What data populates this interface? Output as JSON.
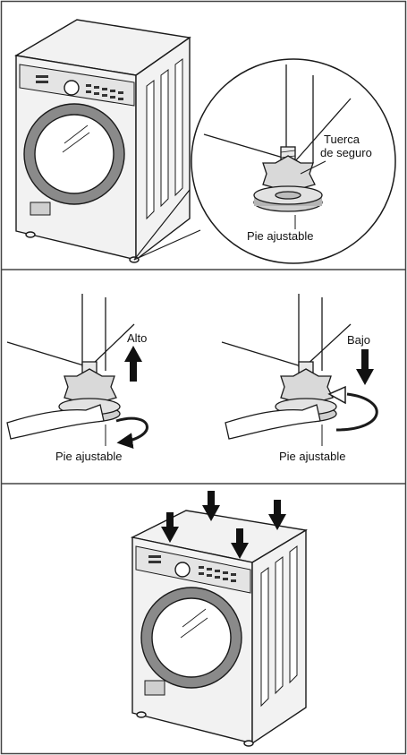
{
  "panel_top": {
    "lock_nut_label_line1": "Tuerca",
    "lock_nut_label_line2": "de seguro",
    "foot_label": "Pie ajustable"
  },
  "panel_middle": {
    "left": {
      "direction_label": "Alto",
      "foot_label": "Pie ajustable"
    },
    "right": {
      "direction_label": "Bajo",
      "foot_label": "Pie ajustable"
    }
  },
  "colors": {
    "line": "#1a1a1a",
    "panel_border": "#444444",
    "machine_fill": "#f2f2f2",
    "door_ring": "#8a8a8a"
  }
}
